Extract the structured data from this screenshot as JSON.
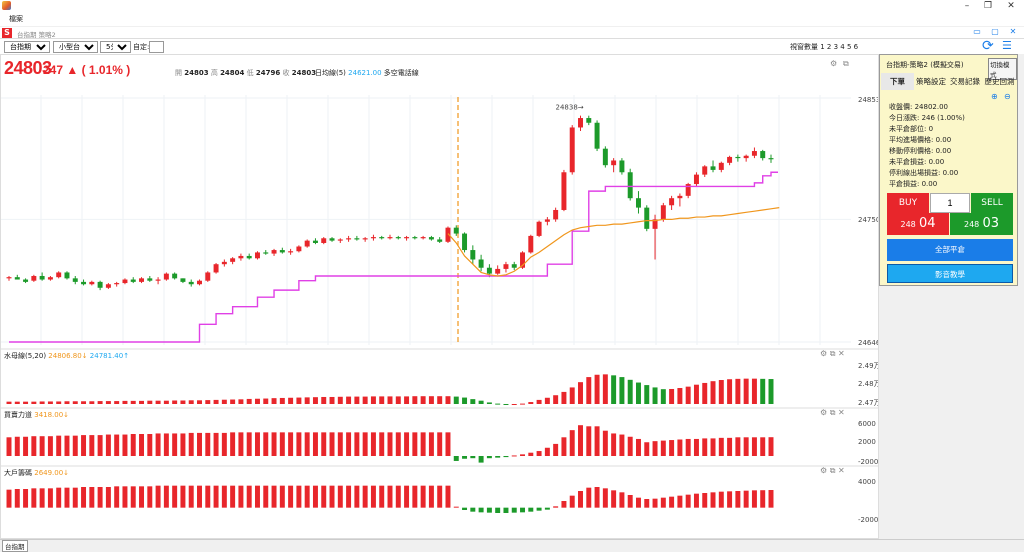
{
  "window": {
    "menu_file": "檔案",
    "inner_title": "台指期 策略2"
  },
  "toolbar": {
    "symbol": "台指期",
    "contract": "小型台指期",
    "interval": "5分K",
    "custom_label": "自定:",
    "view_count_label": "視窗數量 1 2 3 4 5 6"
  },
  "quote": {
    "price": "24803",
    "change": "247 ▲ ( 1.01% )",
    "ohlc": [
      {
        "k": "開",
        "v": "24803"
      },
      {
        "k": "高",
        "v": "24804"
      },
      {
        "k": "低",
        "v": "24796"
      },
      {
        "k": "收",
        "v": "24803"
      }
    ],
    "ma_label": "日均線(5)",
    "ma_value": "24621.00",
    "ma_extra": "多空電話線"
  },
  "price_axis": {
    "high": "24853",
    "mid": "24750",
    "low": "24646"
  },
  "annotation": "24838→",
  "sub1": {
    "name": "水母線(5,20)",
    "v1": "24806.80↓",
    "v2": "24781.40↑",
    "ticks": [
      "2.49万",
      "2.48万",
      "2.47万"
    ]
  },
  "sub2": {
    "name": "買賣力道",
    "v1": "3418.00↓",
    "ticks": [
      "6000",
      "2000",
      "-2000"
    ]
  },
  "sub3": {
    "name": "大戶籌碼",
    "v1": "2649.00↓",
    "ticks": [
      "4000",
      "-2000"
    ]
  },
  "panel": {
    "title": "台指期-策略2 (模擬交易)",
    "switch_label": "切換模式",
    "tabs": [
      "下單",
      "策略設定",
      "交易記錄",
      "歷史回測"
    ],
    "info": [
      "收盤價: 24802.00",
      "今日漲跌: 246 (1.00%)",
      "未平倉部位: 0",
      "平均進場價格: 0.00",
      "移動停利價格: 0.00",
      "未平倉損益: 0.00",
      "停利線出場損益: 0.00",
      "平倉損益: 0.00"
    ],
    "buy_label": "BUY",
    "qty": "1",
    "sell_label": "SELL",
    "buy_price_prefix": "248",
    "buy_price_suffix": "04",
    "sell_price_prefix": "248",
    "sell_price_suffix": "03",
    "close_all_label": "全部平倉",
    "video_label": "影音教學"
  },
  "bottom_tab": "台指期",
  "colors": {
    "up": "#e8262b",
    "down": "#1c9a2a",
    "magenta": "#e040e6",
    "orange": "#f0961c",
    "blue_btn": "#1a7de8",
    "cyan_btn": "#1ea8f0"
  },
  "chart_data": [
    {
      "type": "candlestick",
      "title": "台指期 5分K",
      "ylim": [
        24646,
        24853
      ],
      "candles": [
        [
          24700,
          24702,
          24698,
          24701
        ],
        [
          24701,
          24703,
          24699,
          24699
        ],
        [
          24699,
          24700,
          24696,
          24697
        ],
        [
          24698,
          24703,
          24697,
          24702
        ],
        [
          24702,
          24705,
          24698,
          24699
        ],
        [
          24699,
          24702,
          24698,
          24701
        ],
        [
          24701,
          24706,
          24700,
          24705
        ],
        [
          24705,
          24706,
          24699,
          24700
        ],
        [
          24700,
          24702,
          24695,
          24697
        ],
        [
          24697,
          24699,
          24694,
          24695
        ],
        [
          24695,
          24698,
          24694,
          24697
        ],
        [
          24697,
          24698,
          24690,
          24692
        ],
        [
          24692,
          24696,
          24691,
          24695
        ],
        [
          24695,
          24697,
          24693,
          24696
        ],
        [
          24696,
          24700,
          24695,
          24699
        ],
        [
          24699,
          24701,
          24696,
          24697
        ],
        [
          24697,
          24701,
          24696,
          24700
        ],
        [
          24700,
          24702,
          24697,
          24698
        ],
        [
          24698,
          24701,
          24695,
          24699
        ],
        [
          24699,
          24705,
          24698,
          24704
        ],
        [
          24704,
          24705,
          24699,
          24700
        ],
        [
          24700,
          24700,
          24696,
          24697
        ],
        [
          24697,
          24699,
          24693,
          24695
        ],
        [
          24695,
          24699,
          24694,
          24698
        ],
        [
          24698,
          24706,
          24697,
          24705
        ],
        [
          24705,
          24713,
          24704,
          24712
        ],
        [
          24712,
          24716,
          24710,
          24714
        ],
        [
          24714,
          24718,
          24712,
          24717
        ],
        [
          24717,
          24721,
          24715,
          24719
        ],
        [
          24719,
          24721,
          24716,
          24717
        ],
        [
          24717,
          24723,
          24716,
          24722
        ],
        [
          24722,
          24724,
          24720,
          24721
        ],
        [
          24721,
          24725,
          24719,
          24724
        ],
        [
          24724,
          24726,
          24721,
          24722
        ],
        [
          24722,
          24725,
          24720,
          24723
        ],
        [
          24723,
          24728,
          24722,
          24727
        ],
        [
          24727,
          24733,
          24726,
          24732
        ],
        [
          24732,
          24734,
          24729,
          24730
        ],
        [
          24730,
          24735,
          24729,
          24734
        ],
        [
          24734,
          24735,
          24731,
          24732
        ],
        [
          24732,
          24734,
          24730,
          24733
        ],
        [
          24733,
          24736,
          24731,
          24734
        ],
        [
          24734,
          24736,
          24732,
          24733
        ],
        [
          24733,
          24735,
          24731,
          24734
        ],
        [
          24734,
          24737,
          24732,
          24735
        ],
        [
          24735,
          24736,
          24733,
          24734
        ],
        [
          24734,
          24737,
          24733,
          24735
        ],
        [
          24735,
          24736,
          24733,
          24734
        ],
        [
          24734,
          24736,
          24732,
          24735
        ],
        [
          24735,
          24736,
          24733,
          24734
        ],
        [
          24734,
          24736,
          24733,
          24735
        ],
        [
          24735,
          24736,
          24732,
          24733
        ],
        [
          24733,
          24735,
          24730,
          24731
        ],
        [
          24731,
          24744,
          24730,
          24743
        ],
        [
          24743,
          24745,
          24736,
          24738
        ],
        [
          24738,
          24739,
          24722,
          24724
        ],
        [
          24724,
          24728,
          24712,
          24716
        ],
        [
          24716,
          24720,
          24706,
          24709
        ],
        [
          24709,
          24712,
          24701,
          24704
        ],
        [
          24704,
          24711,
          24703,
          24708
        ],
        [
          24708,
          24714,
          24705,
          24712
        ],
        [
          24712,
          24714,
          24707,
          24709
        ],
        [
          24709,
          24723,
          24708,
          24722
        ],
        [
          24722,
          24737,
          24721,
          24736
        ],
        [
          24736,
          24749,
          24735,
          24748
        ],
        [
          24748,
          24752,
          24745,
          24750
        ],
        [
          24750,
          24760,
          24748,
          24758
        ],
        [
          24758,
          24792,
          24757,
          24790
        ],
        [
          24790,
          24830,
          24788,
          24828
        ],
        [
          24828,
          24838,
          24825,
          24836
        ],
        [
          24836,
          24838,
          24830,
          24832
        ],
        [
          24832,
          24834,
          24808,
          24810
        ],
        [
          24810,
          24812,
          24794,
          24796
        ],
        [
          24796,
          24802,
          24790,
          24800
        ],
        [
          24800,
          24802,
          24788,
          24790
        ],
        [
          24790,
          24793,
          24766,
          24768
        ],
        [
          24768,
          24774,
          24755,
          24760
        ],
        [
          24760,
          24762,
          24740,
          24742
        ],
        [
          24742,
          24754,
          24716,
          24750
        ],
        [
          24750,
          24764,
          24748,
          24762
        ],
        [
          24762,
          24770,
          24758,
          24768
        ],
        [
          24768,
          24772,
          24761,
          24770
        ],
        [
          24770,
          24781,
          24768,
          24780
        ],
        [
          24780,
          24790,
          24778,
          24788
        ],
        [
          24788,
          24796,
          24786,
          24795
        ],
        [
          24795,
          24800,
          24790,
          24792
        ],
        [
          24792,
          24799,
          24790,
          24798
        ],
        [
          24798,
          24804,
          24796,
          24803
        ],
        [
          24803,
          24805,
          24799,
          24802
        ],
        [
          24802,
          24805,
          24799,
          24804
        ],
        [
          24804,
          24811,
          24802,
          24808
        ],
        [
          24808,
          24809,
          24800,
          24802
        ],
        [
          24802,
          24805,
          24798,
          24801
        ]
      ],
      "series": [
        {
          "name": "日均線(5)",
          "color": "#e040e6",
          "values": [
            24646,
            24646,
            24646,
            24646,
            24646,
            24646,
            24646,
            24646,
            24646,
            24646,
            24646,
            24646,
            24646,
            24646,
            24646,
            24646,
            24646,
            24646,
            24646,
            24646,
            24646,
            24646,
            24646,
            24661,
            24661,
            24670,
            24670,
            24676,
            24676,
            24676,
            24684,
            24684,
            24690,
            24690,
            24690,
            24698,
            24698,
            24702,
            24702,
            24702,
            24702,
            24702,
            24702,
            24702,
            24702,
            24702,
            24702,
            24702,
            24702,
            24702,
            24702,
            24702,
            24702,
            24702,
            24702,
            24702,
            24702,
            24702,
            24702,
            24702,
            24702,
            24702,
            24702,
            24702,
            24702,
            24712,
            24712,
            24712,
            24740,
            24740,
            24774,
            24774,
            24778,
            24778,
            24778,
            24778,
            24778,
            24778,
            24778,
            24778,
            24778,
            24778,
            24778,
            24778,
            24778,
            24778,
            24778,
            24778,
            24778,
            24778,
            24781,
            24787,
            24790
          ]
        },
        {
          "name": "水母線",
          "color": "#f0961c",
          "start": 53,
          "values": [
            24738,
            24730,
            24719,
            24712,
            24705,
            24703,
            24702,
            24703,
            24706,
            24711,
            24718,
            24722,
            24727,
            24732,
            24737,
            24741,
            24743,
            24744,
            24745,
            24745,
            24746,
            24746,
            24747,
            24748,
            24749,
            24749,
            24750,
            24750,
            24751,
            24751,
            24752,
            24752,
            24753,
            24753,
            24754,
            24755,
            24756,
            24757,
            24758,
            24759,
            24760
          ]
        }
      ]
    },
    {
      "type": "bar",
      "title": "水母線(5,20)",
      "ylim": [
        24700,
        24900
      ],
      "values": [
        24712,
        24712,
        24712,
        24712,
        24713,
        24713,
        24713,
        24714,
        24714,
        24714,
        24714,
        24715,
        24715,
        24715,
        24716,
        24716,
        24716,
        24717,
        24717,
        24717,
        24718,
        24718,
        24719,
        24719,
        24720,
        24721,
        24722,
        24723,
        24724,
        24726,
        24727,
        24728,
        24730,
        24731,
        24732,
        24733,
        24734,
        24735,
        24736,
        24736,
        24737,
        24738,
        24738,
        24738,
        24739,
        24739,
        24739,
        24739,
        24739,
        24740,
        24740,
        24740,
        24740,
        24740,
        24738,
        24733,
        24725,
        24717,
        24708,
        24702,
        24698,
        24698,
        24702,
        24710,
        24721,
        24732,
        24745,
        24762,
        24785,
        24812,
        24838,
        24850,
        24852,
        24847,
        24838,
        24824,
        24810,
        24797,
        24785,
        24776,
        24777,
        24782,
        24789,
        24799,
        24808,
        24817,
        24823,
        24827,
        24829,
        24830,
        24830,
        24829,
        24828
      ]
    },
    {
      "type": "bar",
      "title": "買賣力道",
      "ylim": [
        -2000,
        6000
      ],
      "values": [
        3400,
        3500,
        3500,
        3600,
        3600,
        3600,
        3700,
        3700,
        3700,
        3800,
        3800,
        3800,
        3900,
        3900,
        3900,
        4000,
        4000,
        4000,
        4100,
        4100,
        4100,
        4100,
        4200,
        4200,
        4200,
        4200,
        4200,
        4300,
        4300,
        4300,
        4300,
        4300,
        4300,
        4300,
        4300,
        4300,
        4300,
        4300,
        4300,
        4300,
        4300,
        4300,
        4300,
        4300,
        4300,
        4300,
        4300,
        4300,
        4300,
        4300,
        4300,
        4300,
        4300,
        4300,
        -900,
        -500,
        -400,
        -1200,
        -400,
        -300,
        -200,
        100,
        300,
        600,
        900,
        1500,
        2200,
        3400,
        4700,
        5600,
        5400,
        5400,
        4600,
        4100,
        3900,
        3500,
        3100,
        2500,
        2700,
        2800,
        2900,
        3000,
        3100,
        3100,
        3200,
        3200,
        3300,
        3300,
        3400,
        3400,
        3400,
        3400,
        3418
      ]
    },
    {
      "type": "bar",
      "title": "大戶籌碼",
      "ylim": [
        -2000,
        4000
      ],
      "values": [
        2700,
        2800,
        2800,
        2900,
        2900,
        2900,
        3000,
        3000,
        3000,
        3100,
        3100,
        3100,
        3100,
        3200,
        3200,
        3200,
        3200,
        3200,
        3300,
        3300,
        3300,
        3300,
        3300,
        3300,
        3300,
        3300,
        3300,
        3300,
        3300,
        3300,
        3300,
        3300,
        3300,
        3300,
        3300,
        3300,
        3300,
        3300,
        3300,
        3300,
        3300,
        3300,
        3300,
        3300,
        3300,
        3300,
        3300,
        3300,
        3300,
        3300,
        3300,
        3300,
        3300,
        3300,
        150,
        -350,
        -600,
        -700,
        -750,
        -800,
        -800,
        -750,
        -700,
        -600,
        -450,
        -300,
        200,
        1000,
        1800,
        2500,
        3000,
        3100,
        2900,
        2600,
        2300,
        1900,
        1500,
        1300,
        1350,
        1500,
        1650,
        1800,
        1950,
        2100,
        2200,
        2300,
        2400,
        2450,
        2500,
        2550,
        2600,
        2620,
        2649
      ]
    }
  ]
}
